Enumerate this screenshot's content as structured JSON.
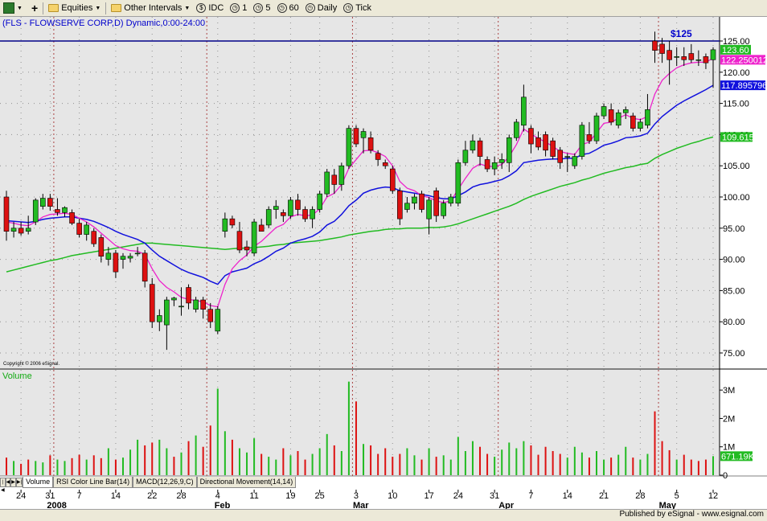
{
  "toolbar": {
    "equities_label": "Equities",
    "other_intervals_label": "Other Intervals",
    "idc_label": "IDC",
    "int1_label": "1",
    "int5_label": "5",
    "int60_label": "60",
    "daily_label": "Daily",
    "tick_label": "Tick"
  },
  "price_panel": {
    "title": "(FLS - FLOWSERVE CORP,D) Dynamic,0:00-24:00",
    "copyright": "Copyright © 2006 eSignal.",
    "annotation": "$125",
    "y_ticks": [
      "125.00",
      "120.00",
      "115.00",
      "110.00",
      "105.00",
      "100.00",
      "95.00",
      "90.00",
      "85.00",
      "80.00",
      "75.00"
    ],
    "last_price": "123.60",
    "ma_magenta_value": "122.250012",
    "ma_blue_value": "117.895796",
    "ma_green_value": "109.615"
  },
  "volume_panel": {
    "title": "Volume",
    "y_ticks": [
      "3M",
      "2M",
      "1M",
      "0"
    ],
    "last_volume": "671.19K"
  },
  "x_axis": {
    "day_labels": [
      "24",
      "31",
      "7",
      "14",
      "22",
      "28",
      "4",
      "11",
      "19",
      "25",
      "3",
      "10",
      "17",
      "24",
      "31",
      "7",
      "14",
      "21",
      "28",
      "5",
      "12"
    ],
    "month_labels": [
      "2008",
      "Feb",
      "Mar",
      "Apr",
      "May"
    ]
  },
  "tabs": [
    "Volume",
    "RSI Color Line Bar(14)",
    "MACD(12,26,9,C)",
    "Directional Movement(14,14)"
  ],
  "footer": {
    "published": "Published by eSignal - www.esignal.com"
  },
  "colors": {
    "up": "#22bb22",
    "down": "#dd1111",
    "ma_fast": "#ee22cc",
    "ma_mid": "#1111dd",
    "ma_slow": "#22bb22",
    "resistance": "#000088"
  },
  "chart_data": {
    "type": "candlestick",
    "x_range": [
      "2007-12-20",
      "2008-05-12"
    ],
    "ylim": [
      72,
      127
    ],
    "resistance_level": 125,
    "candles": [
      {
        "d": "2007-12-20",
        "o": 100.0,
        "h": 101.0,
        "l": 93.0,
        "c": 94.5
      },
      {
        "d": "2007-12-21",
        "o": 94.5,
        "h": 96.0,
        "l": 93.5,
        "c": 95.0
      },
      {
        "d": "2007-12-24",
        "o": 95.0,
        "h": 96.0,
        "l": 93.8,
        "c": 94.2
      },
      {
        "d": "2007-12-26",
        "o": 94.5,
        "h": 97.0,
        "l": 94.0,
        "c": 95.0
      },
      {
        "d": "2007-12-27",
        "o": 96.0,
        "h": 99.8,
        "l": 95.5,
        "c": 99.5
      },
      {
        "d": "2007-12-28",
        "o": 98.5,
        "h": 100.5,
        "l": 98.0,
        "c": 99.8
      },
      {
        "d": "2007-12-31",
        "o": 99.8,
        "h": 100.5,
        "l": 97.8,
        "c": 98.5
      },
      {
        "d": "2008-01-02",
        "o": 98.0,
        "h": 99.8,
        "l": 97.0,
        "c": 97.5
      },
      {
        "d": "2008-01-03",
        "o": 97.5,
        "h": 98.5,
        "l": 96.8,
        "c": 98.3
      },
      {
        "d": "2008-01-04",
        "o": 97.5,
        "h": 98.0,
        "l": 95.5,
        "c": 95.8
      },
      {
        "d": "2008-01-07",
        "o": 95.8,
        "h": 96.5,
        "l": 93.5,
        "c": 94.0
      },
      {
        "d": "2008-01-08",
        "o": 94.0,
        "h": 96.0,
        "l": 93.0,
        "c": 95.5
      },
      {
        "d": "2008-01-09",
        "o": 94.5,
        "h": 95.0,
        "l": 92.0,
        "c": 92.5
      },
      {
        "d": "2008-01-10",
        "o": 93.5,
        "h": 94.0,
        "l": 89.5,
        "c": 90.5
      },
      {
        "d": "2008-01-11",
        "o": 90.0,
        "h": 92.0,
        "l": 89.0,
        "c": 91.0
      },
      {
        "d": "2008-01-14",
        "o": 91.0,
        "h": 91.5,
        "l": 87.0,
        "c": 88.0
      },
      {
        "d": "2008-01-15",
        "o": 90.0,
        "h": 91.0,
        "l": 88.5,
        "c": 90.5
      },
      {
        "d": "2008-01-16",
        "o": 90.2,
        "h": 91.0,
        "l": 89.5,
        "c": 90.5
      },
      {
        "d": "2008-01-17",
        "o": 91.0,
        "h": 92.0,
        "l": 90.5,
        "c": 91.0
      },
      {
        "d": "2008-01-18",
        "o": 91.0,
        "h": 91.5,
        "l": 85.5,
        "c": 86.5
      },
      {
        "d": "2008-01-22",
        "o": 86.0,
        "h": 87.0,
        "l": 79.0,
        "c": 80.0
      },
      {
        "d": "2008-01-23",
        "o": 80.0,
        "h": 82.0,
        "l": 78.5,
        "c": 81.0
      },
      {
        "d": "2008-01-24",
        "o": 79.5,
        "h": 84.0,
        "l": 75.5,
        "c": 83.5
      },
      {
        "d": "2008-01-25",
        "o": 83.5,
        "h": 84.0,
        "l": 82.5,
        "c": 83.8
      },
      {
        "d": "2008-01-28",
        "o": 82.5,
        "h": 85.5,
        "l": 81.0,
        "c": 82.5
      },
      {
        "d": "2008-01-29",
        "o": 85.5,
        "h": 86.0,
        "l": 82.0,
        "c": 83.0
      },
      {
        "d": "2008-01-30",
        "o": 82.0,
        "h": 84.0,
        "l": 81.5,
        "c": 83.5
      },
      {
        "d": "2008-01-31",
        "o": 83.5,
        "h": 84.0,
        "l": 80.5,
        "c": 82.0
      },
      {
        "d": "2008-02-01",
        "o": 82.0,
        "h": 83.0,
        "l": 79.0,
        "c": 80.0
      },
      {
        "d": "2008-02-04",
        "o": 78.5,
        "h": 82.5,
        "l": 78.0,
        "c": 82.0
      },
      {
        "d": "2008-02-05",
        "o": 94.5,
        "h": 97.5,
        "l": 93.5,
        "c": 96.5
      },
      {
        "d": "2008-02-06",
        "o": 96.5,
        "h": 97.0,
        "l": 95.0,
        "c": 95.5
      },
      {
        "d": "2008-02-07",
        "o": 94.5,
        "h": 96.0,
        "l": 91.0,
        "c": 91.5
      },
      {
        "d": "2008-02-08",
        "o": 92.0,
        "h": 93.0,
        "l": 90.5,
        "c": 91.5
      },
      {
        "d": "2008-02-11",
        "o": 91.0,
        "h": 96.5,
        "l": 90.5,
        "c": 96.0
      },
      {
        "d": "2008-02-12",
        "o": 95.5,
        "h": 96.5,
        "l": 94.5,
        "c": 94.5
      },
      {
        "d": "2008-02-13",
        "o": 95.5,
        "h": 98.5,
        "l": 95.0,
        "c": 98.0
      },
      {
        "d": "2008-02-14",
        "o": 98.0,
        "h": 99.5,
        "l": 96.5,
        "c": 98.5
      },
      {
        "d": "2008-02-15",
        "o": 97.5,
        "h": 98.0,
        "l": 96.0,
        "c": 97.0
      },
      {
        "d": "2008-02-19",
        "o": 97.0,
        "h": 100.0,
        "l": 96.5,
        "c": 99.5
      },
      {
        "d": "2008-02-20",
        "o": 99.5,
        "h": 100.5,
        "l": 97.0,
        "c": 98.0
      },
      {
        "d": "2008-02-21",
        "o": 98.0,
        "h": 98.5,
        "l": 96.0,
        "c": 96.5
      },
      {
        "d": "2008-02-22",
        "o": 96.5,
        "h": 98.5,
        "l": 95.0,
        "c": 98.0
      },
      {
        "d": "2008-02-25",
        "o": 98.0,
        "h": 101.0,
        "l": 97.5,
        "c": 100.5
      },
      {
        "d": "2008-02-26",
        "o": 100.5,
        "h": 104.5,
        "l": 100.0,
        "c": 104.0
      },
      {
        "d": "2008-02-27",
        "o": 103.5,
        "h": 104.5,
        "l": 100.5,
        "c": 102.0
      },
      {
        "d": "2008-02-28",
        "o": 102.0,
        "h": 105.5,
        "l": 101.0,
        "c": 105.0
      },
      {
        "d": "2008-02-29",
        "o": 105.0,
        "h": 111.5,
        "l": 104.5,
        "c": 111.0
      },
      {
        "d": "2008-03-03",
        "o": 111.0,
        "h": 111.5,
        "l": 108.0,
        "c": 108.5
      },
      {
        "d": "2008-03-04",
        "o": 109.5,
        "h": 111.0,
        "l": 107.0,
        "c": 110.5
      },
      {
        "d": "2008-03-05",
        "o": 109.5,
        "h": 110.5,
        "l": 107.0,
        "c": 107.5
      },
      {
        "d": "2008-03-06",
        "o": 107.0,
        "h": 107.5,
        "l": 105.0,
        "c": 106.0
      },
      {
        "d": "2008-03-07",
        "o": 105.5,
        "h": 106.0,
        "l": 104.5,
        "c": 105.0
      },
      {
        "d": "2008-03-10",
        "o": 104.5,
        "h": 105.0,
        "l": 100.5,
        "c": 101.0
      },
      {
        "d": "2008-03-11",
        "o": 101.0,
        "h": 101.5,
        "l": 95.5,
        "c": 96.5
      },
      {
        "d": "2008-03-12",
        "o": 98.0,
        "h": 100.0,
        "l": 97.5,
        "c": 99.0
      },
      {
        "d": "2008-03-13",
        "o": 99.0,
        "h": 100.5,
        "l": 98.0,
        "c": 100.0
      },
      {
        "d": "2008-03-14",
        "o": 100.5,
        "h": 101.0,
        "l": 97.5,
        "c": 98.0
      },
      {
        "d": "2008-03-17",
        "o": 96.5,
        "h": 100.0,
        "l": 94.0,
        "c": 99.5
      },
      {
        "d": "2008-03-18",
        "o": 101.0,
        "h": 101.5,
        "l": 96.0,
        "c": 97.0
      },
      {
        "d": "2008-03-19",
        "o": 97.0,
        "h": 99.5,
        "l": 96.5,
        "c": 99.0
      },
      {
        "d": "2008-03-20",
        "o": 99.0,
        "h": 100.5,
        "l": 98.5,
        "c": 100.0
      },
      {
        "d": "2008-03-24",
        "o": 99.0,
        "h": 106.0,
        "l": 98.5,
        "c": 105.5
      },
      {
        "d": "2008-03-25",
        "o": 105.5,
        "h": 109.0,
        "l": 105.0,
        "c": 107.5
      },
      {
        "d": "2008-03-26",
        "o": 107.5,
        "h": 110.0,
        "l": 107.0,
        "c": 109.0
      },
      {
        "d": "2008-03-27",
        "o": 109.0,
        "h": 109.5,
        "l": 105.0,
        "c": 106.5
      },
      {
        "d": "2008-03-28",
        "o": 106.0,
        "h": 106.5,
        "l": 104.0,
        "c": 104.5
      },
      {
        "d": "2008-03-31",
        "o": 104.5,
        "h": 106.5,
        "l": 103.5,
        "c": 105.5
      },
      {
        "d": "2008-04-01",
        "o": 105.5,
        "h": 107.0,
        "l": 104.5,
        "c": 106.0
      },
      {
        "d": "2008-04-02",
        "o": 105.5,
        "h": 110.0,
        "l": 104.0,
        "c": 109.5
      },
      {
        "d": "2008-04-03",
        "o": 109.5,
        "h": 112.5,
        "l": 109.0,
        "c": 112.0
      },
      {
        "d": "2008-04-04",
        "o": 111.5,
        "h": 118.0,
        "l": 110.5,
        "c": 116.0
      },
      {
        "d": "2008-04-07",
        "o": 111.0,
        "h": 111.5,
        "l": 107.0,
        "c": 108.5
      },
      {
        "d": "2008-04-08",
        "o": 109.5,
        "h": 110.5,
        "l": 107.5,
        "c": 108.0
      },
      {
        "d": "2008-04-09",
        "o": 110.0,
        "h": 110.5,
        "l": 106.5,
        "c": 107.5
      },
      {
        "d": "2008-04-10",
        "o": 109.0,
        "h": 109.5,
        "l": 106.0,
        "c": 106.5
      },
      {
        "d": "2008-04-11",
        "o": 107.5,
        "h": 108.0,
        "l": 104.5,
        "c": 105.5
      },
      {
        "d": "2008-04-14",
        "o": 106.5,
        "h": 107.0,
        "l": 104.0,
        "c": 106.5
      },
      {
        "d": "2008-04-15",
        "o": 105.0,
        "h": 107.0,
        "l": 104.5,
        "c": 106.5
      },
      {
        "d": "2008-04-16",
        "o": 106.5,
        "h": 112.0,
        "l": 106.0,
        "c": 111.5
      },
      {
        "d": "2008-04-17",
        "o": 110.0,
        "h": 112.0,
        "l": 108.5,
        "c": 109.0
      },
      {
        "d": "2008-04-18",
        "o": 109.0,
        "h": 113.5,
        "l": 108.5,
        "c": 113.0
      },
      {
        "d": "2008-04-21",
        "o": 113.0,
        "h": 115.0,
        "l": 112.5,
        "c": 114.5
      },
      {
        "d": "2008-04-22",
        "o": 114.0,
        "h": 115.0,
        "l": 111.5,
        "c": 112.0
      },
      {
        "d": "2008-04-23",
        "o": 111.5,
        "h": 114.0,
        "l": 111.0,
        "c": 113.5
      },
      {
        "d": "2008-04-24",
        "o": 113.5,
        "h": 114.5,
        "l": 112.5,
        "c": 114.0
      },
      {
        "d": "2008-04-25",
        "o": 113.0,
        "h": 113.5,
        "l": 110.5,
        "c": 111.0
      },
      {
        "d": "2008-04-28",
        "o": 111.0,
        "h": 112.5,
        "l": 110.5,
        "c": 112.0
      },
      {
        "d": "2008-04-29",
        "o": 111.5,
        "h": 116.5,
        "l": 111.0,
        "c": 114.0
      },
      {
        "d": "2008-04-30",
        "o": 125.0,
        "h": 126.5,
        "l": 121.5,
        "c": 123.5
      },
      {
        "d": "2008-05-01",
        "o": 124.5,
        "h": 125.5,
        "l": 121.5,
        "c": 123.0
      },
      {
        "d": "2008-05-02",
        "o": 123.5,
        "h": 125.0,
        "l": 118.0,
        "c": 122.0
      },
      {
        "d": "2008-05-05",
        "o": 122.5,
        "h": 124.0,
        "l": 121.0,
        "c": 122.5
      },
      {
        "d": "2008-05-06",
        "o": 122.5,
        "h": 124.0,
        "l": 121.0,
        "c": 122.0
      },
      {
        "d": "2008-05-07",
        "o": 123.0,
        "h": 124.5,
        "l": 121.5,
        "c": 122.0
      },
      {
        "d": "2008-05-08",
        "o": 122.0,
        "h": 123.5,
        "l": 121.0,
        "c": 122.0
      },
      {
        "d": "2008-05-09",
        "o": 122.5,
        "h": 123.0,
        "l": 120.5,
        "c": 121.5
      },
      {
        "d": "2008-05-12",
        "o": 122.0,
        "h": 124.0,
        "l": 117.5,
        "c": 123.6
      }
    ],
    "ma_fast": [
      96,
      95.8,
      95.5,
      95.4,
      96.0,
      96.8,
      97.2,
      97.3,
      97.4,
      97.2,
      96.6,
      96.0,
      95.2,
      94.2,
      93.2,
      92.2,
      91.7,
      91.4,
      91.3,
      90.8,
      88.5,
      86.6,
      85.5,
      84.8,
      83.9,
      83.6,
      83.4,
      83.2,
      82.6,
      82.4,
      86.0,
      88.5,
      89.8,
      90.7,
      92.1,
      92.9,
      94.0,
      95.1,
      95.6,
      96.8,
      97.2,
      97.0,
      97.1,
      98.1,
      100.0,
      100.6,
      102.0,
      104.6,
      106.0,
      107.4,
      107.5,
      107.1,
      106.5,
      105.0,
      102.5,
      101.4,
      101.0,
      100.2,
      99.9,
      99.4,
      99.1,
      99.4,
      101.2,
      103.0,
      104.6,
      105.3,
      104.9,
      104.9,
      105.2,
      106.5,
      108.4,
      110.9,
      110.1,
      109.4,
      108.8,
      108.1,
      107.3,
      107.0,
      106.8,
      108.4,
      108.8,
      110.3,
      111.8,
      112.0,
      112.6,
      113.2,
      112.6,
      112.4,
      112.9,
      116.5,
      118.7,
      119.8,
      120.7,
      121.2,
      121.5,
      121.6,
      121.6,
      122.25
    ],
    "ma_mid": [
      96.2,
      96.1,
      96.0,
      95.9,
      96.1,
      96.4,
      96.6,
      96.7,
      96.8,
      96.8,
      96.6,
      96.4,
      96.1,
      95.6,
      95.1,
      94.5,
      94.0,
      93.6,
      93.2,
      92.6,
      91.5,
      90.5,
      89.8,
      89.1,
      88.4,
      87.9,
      87.5,
      87.1,
      86.5,
      86.0,
      87.4,
      88.0,
      88.3,
      88.6,
      89.3,
      89.8,
      90.5,
      91.3,
      91.8,
      92.6,
      93.0,
      93.3,
      93.7,
      94.4,
      95.5,
      96.1,
      97.2,
      98.6,
      99.5,
      100.6,
      101.1,
      101.4,
      101.6,
      101.5,
      101.0,
      100.8,
      100.6,
      100.4,
      100.2,
      99.9,
      99.7,
      99.7,
      100.2,
      100.8,
      101.6,
      102.0,
      102.2,
      102.5,
      102.8,
      103.4,
      104.2,
      105.5,
      105.7,
      105.9,
      106.0,
      106.1,
      106.1,
      106.2,
      106.2,
      106.8,
      107.0,
      107.6,
      108.3,
      108.6,
      109.0,
      109.5,
      109.6,
      109.8,
      110.2,
      111.7,
      112.9,
      113.8,
      114.7,
      115.4,
      116.0,
      116.6,
      117.2,
      117.9
    ],
    "ma_slow": [
      88.0,
      88.3,
      88.6,
      88.9,
      89.2,
      89.5,
      89.8,
      90.0,
      90.3,
      90.6,
      90.8,
      91.0,
      91.2,
      91.4,
      91.6,
      91.8,
      92.0,
      92.2,
      92.4,
      92.6,
      92.6,
      92.5,
      92.4,
      92.3,
      92.2,
      92.1,
      92.0,
      91.9,
      91.8,
      91.7,
      91.6,
      91.7,
      91.8,
      91.8,
      91.9,
      92.0,
      92.1,
      92.3,
      92.4,
      92.6,
      92.7,
      92.8,
      92.9,
      93.0,
      93.2,
      93.4,
      93.6,
      93.9,
      94.1,
      94.3,
      94.5,
      94.6,
      94.8,
      94.9,
      94.9,
      95.0,
      95.0,
      95.0,
      95.1,
      95.1,
      95.2,
      95.4,
      95.7,
      96.1,
      96.5,
      96.9,
      97.3,
      97.7,
      98.1,
      98.5,
      99.0,
      99.6,
      100.1,
      100.5,
      100.9,
      101.3,
      101.7,
      102.0,
      102.3,
      102.7,
      103.0,
      103.4,
      103.8,
      104.1,
      104.4,
      104.7,
      104.9,
      105.2,
      105.4,
      106.2,
      106.8,
      107.3,
      107.8,
      108.2,
      108.6,
      108.9,
      109.3,
      109.615
    ],
    "volume_unit": "millions of shares",
    "volume_ylim": [
      0,
      3.6
    ],
    "volume": [
      0.62,
      0.5,
      0.4,
      0.55,
      0.5,
      0.45,
      0.7,
      0.55,
      0.5,
      0.6,
      0.72,
      0.55,
      0.7,
      0.6,
      0.95,
      0.55,
      0.62,
      0.9,
      1.25,
      1.05,
      1.15,
      1.25,
      0.95,
      0.65,
      0.8,
      1.2,
      1.4,
      1.0,
      1.75,
      3.05,
      1.55,
      1.25,
      0.95,
      0.8,
      1.3,
      0.75,
      0.65,
      0.55,
      0.95,
      0.7,
      0.85,
      0.55,
      0.75,
      0.95,
      1.45,
      1.05,
      0.85,
      3.3,
      2.6,
      1.1,
      1.05,
      0.75,
      0.95,
      0.65,
      0.75,
      0.95,
      0.7,
      0.55,
      0.95,
      0.65,
      0.7,
      0.55,
      1.35,
      0.85,
      1.2,
      1.0,
      0.75,
      0.65,
      0.9,
      1.15,
      0.95,
      1.2,
      1.05,
      0.72,
      1.0,
      0.85,
      0.75,
      0.62,
      1.0,
      0.8,
      0.62,
      0.85,
      0.55,
      0.62,
      0.72,
      1.0,
      0.62,
      0.55,
      0.75,
      2.25,
      1.2,
      0.88,
      0.55,
      0.72,
      0.55,
      0.5,
      0.55,
      0.67
    ],
    "volume_up": [
      false,
      true,
      false,
      false,
      true,
      true,
      false,
      true,
      true,
      false,
      false,
      true,
      false,
      false,
      true,
      false,
      true,
      true,
      true,
      false,
      false,
      true,
      true,
      false,
      true,
      false,
      true,
      false,
      false,
      true,
      true,
      false,
      true,
      true,
      true,
      false,
      true,
      true,
      false,
      true,
      false,
      false,
      true,
      true,
      true,
      false,
      true,
      true,
      false,
      true,
      false,
      false,
      false,
      false,
      false,
      true,
      true,
      false,
      true,
      false,
      true,
      true,
      true,
      true,
      true,
      false,
      false,
      true,
      true,
      true,
      true,
      true,
      false,
      false,
      false,
      false,
      false,
      true,
      true,
      true,
      false,
      true,
      true,
      false,
      true,
      true,
      false,
      true,
      true,
      false,
      false,
      false,
      true,
      false,
      false,
      false,
      false,
      true
    ]
  }
}
